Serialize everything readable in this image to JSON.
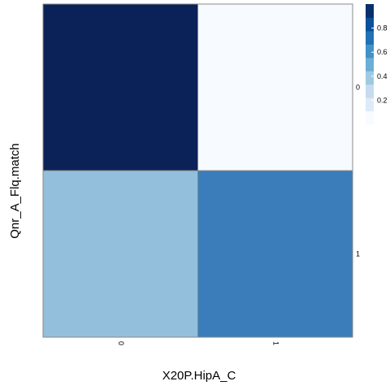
{
  "chart_data": {
    "type": "heatmap",
    "xlabel": "X20P.HipA_C",
    "ylabel": "Qnr_A_Flq.match",
    "x_categories": [
      "0",
      "1"
    ],
    "y_categories": [
      "0",
      "1"
    ],
    "cells": [
      {
        "x": "0",
        "y": "0",
        "value": 1.0,
        "color": "#0b2259"
      },
      {
        "x": "1",
        "y": "0",
        "value": 0.0,
        "color": "#f7fbff"
      },
      {
        "x": "0",
        "y": "1",
        "value": 0.4,
        "color": "#93bfdc"
      },
      {
        "x": "1",
        "y": "1",
        "value": 0.7,
        "color": "#3a7dba"
      }
    ],
    "colorbar": {
      "ticks": [
        0.2,
        0.4,
        0.6,
        0.8
      ],
      "tick_labels": [
        "0.2",
        "0.4",
        "0.6",
        "0.8"
      ],
      "range": [
        0,
        1
      ],
      "colors": [
        "#f7fbff",
        "#deebf7",
        "#c6dbef",
        "#9ecae1",
        "#6baed6",
        "#4292c6",
        "#2171b5",
        "#08519c",
        "#08306b"
      ]
    },
    "grid": false,
    "legend": "right"
  }
}
